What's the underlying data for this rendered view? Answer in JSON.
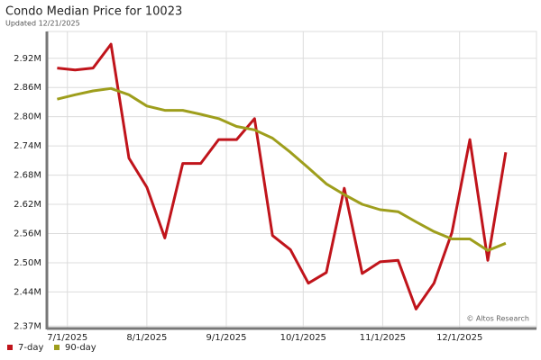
{
  "chart_data": {
    "type": "line",
    "title": "Condo Median Price for 10023",
    "subtitle": "Updated 12/21/2025",
    "annotation": "© Altos Research",
    "x": [
      "2025-06-27",
      "2025-07-04",
      "2025-07-11",
      "2025-07-18",
      "2025-07-25",
      "2025-08-01",
      "2025-08-08",
      "2025-08-15",
      "2025-08-22",
      "2025-08-29",
      "2025-09-05",
      "2025-09-12",
      "2025-09-19",
      "2025-09-26",
      "2025-10-03",
      "2025-10-10",
      "2025-10-17",
      "2025-10-24",
      "2025-10-31",
      "2025-11-07",
      "2025-11-14",
      "2025-11-21",
      "2025-11-28",
      "2025-12-05",
      "2025-12-12",
      "2025-12-19"
    ],
    "series": [
      {
        "name": "7-day",
        "color": "#c0141b",
        "values": [
          2.9,
          2.896,
          2.9,
          2.949,
          2.715,
          2.655,
          2.551,
          2.704,
          2.704,
          2.753,
          2.753,
          2.796,
          2.556,
          2.527,
          2.458,
          2.48,
          2.653,
          2.478,
          2.502,
          2.505,
          2.405,
          2.458,
          2.562,
          2.753,
          2.505,
          2.727
        ]
      },
      {
        "name": "90-day",
        "color": "#9e9e1c",
        "values": [
          2.836,
          2.845,
          2.853,
          2.858,
          2.845,
          2.822,
          2.813,
          2.813,
          2.805,
          2.796,
          2.78,
          2.773,
          2.756,
          2.727,
          2.695,
          2.662,
          2.64,
          2.62,
          2.609,
          2.605,
          2.584,
          2.564,
          2.549,
          2.549,
          2.525,
          2.54
        ]
      }
    ],
    "xlim": [
      "2025-06-23",
      "2025-12-31"
    ],
    "xticks": [
      {
        "value": "2025-07-01",
        "label": "7/1/2025"
      },
      {
        "value": "2025-08-01",
        "label": "8/1/2025"
      },
      {
        "value": "2025-09-01",
        "label": "9/1/2025"
      },
      {
        "value": "2025-10-01",
        "label": "10/1/2025"
      },
      {
        "value": "2025-11-01",
        "label": "11/1/2025"
      },
      {
        "value": "2025-12-01",
        "label": "12/1/2025"
      }
    ],
    "ylim": [
      2.365,
      2.975
    ],
    "yticks": [
      {
        "value": 2.37,
        "label": "2.37M"
      },
      {
        "value": 2.44,
        "label": "2.44M"
      },
      {
        "value": 2.5,
        "label": "2.50M"
      },
      {
        "value": 2.56,
        "label": "2.56M"
      },
      {
        "value": 2.62,
        "label": "2.62M"
      },
      {
        "value": 2.68,
        "label": "2.68M"
      },
      {
        "value": 2.74,
        "label": "2.74M"
      },
      {
        "value": 2.8,
        "label": "2.80M"
      },
      {
        "value": 2.86,
        "label": "2.86M"
      },
      {
        "value": 2.92,
        "label": "2.92M"
      }
    ],
    "grid": true,
    "legend": "bottom-left"
  }
}
